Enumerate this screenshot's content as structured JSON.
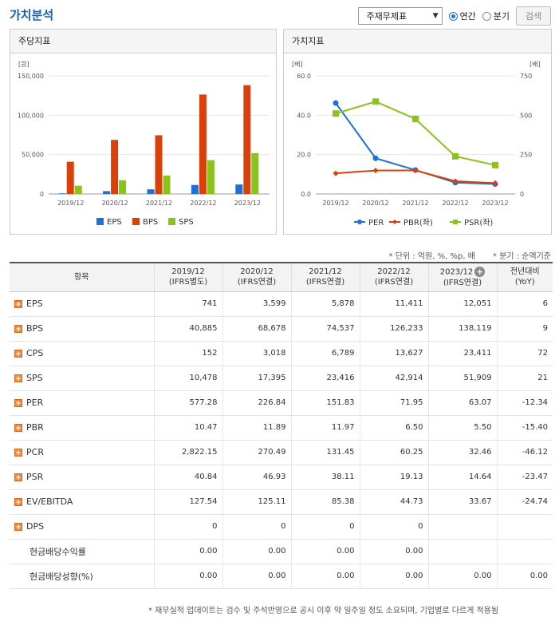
{
  "page_title": "가치분석",
  "controls": {
    "statement_select": "주재무제표",
    "radio_annual": "연간",
    "radio_quarter": "분기",
    "search_button": "검색"
  },
  "left_panel": {
    "title": "주당지표",
    "unit": "[원]",
    "yticks": [
      "150,000",
      "100,000",
      "50,000",
      "0"
    ],
    "legend": [
      "EPS",
      "BPS",
      "SPS"
    ]
  },
  "right_panel": {
    "title": "가치지표",
    "unit_left": "[배]",
    "unit_right": "[배]",
    "yticks_left": [
      "60.0",
      "40.0",
      "20.0",
      "0.0"
    ],
    "yticks_right": [
      "750",
      "500",
      "250",
      "0"
    ],
    "legend": [
      "PER",
      "PBR(좌)",
      "PSR(좌)"
    ]
  },
  "colors": {
    "eps": "#1f6fd6",
    "bps": "#d9400c",
    "sps": "#8ac31c",
    "per": "#1f6fd6",
    "pbr": "#d9400c",
    "psr": "#8ac31c"
  },
  "chart_data": [
    {
      "type": "bar",
      "categories": [
        "2019/12",
        "2020/12",
        "2021/12",
        "2022/12",
        "2023/12"
      ],
      "series": [
        {
          "name": "EPS",
          "values": [
            741,
            3599,
            5878,
            11411,
            12051
          ]
        },
        {
          "name": "BPS",
          "values": [
            40885,
            68678,
            74537,
            126233,
            138119
          ]
        },
        {
          "name": "SPS",
          "values": [
            10478,
            17395,
            23416,
            42914,
            51909
          ]
        }
      ],
      "ylim": [
        0,
        150000
      ]
    },
    {
      "type": "line",
      "categories": [
        "2019/12",
        "2020/12",
        "2021/12",
        "2022/12",
        "2023/12"
      ],
      "series": [
        {
          "name": "PER",
          "axis": "right",
          "values": [
            577.28,
            226.84,
            151.83,
            71.95,
            63.07
          ]
        },
        {
          "name": "PBR(좌)",
          "axis": "left",
          "values": [
            10.47,
            11.89,
            11.97,
            6.5,
            5.5
          ]
        },
        {
          "name": "PSR(좌)",
          "axis": "left",
          "values": [
            40.84,
            46.93,
            38.11,
            19.13,
            14.64
          ]
        }
      ],
      "ylim_left": [
        0,
        60
      ],
      "ylim_right": [
        0,
        750
      ]
    }
  ],
  "notes": {
    "unit": "* 단위 : 억원, %, %p, 배",
    "quarter": "* 분기 : 순액기준"
  },
  "table": {
    "header_item": "항목",
    "columns": [
      {
        "period": "2019/12",
        "basis": "(IFRS별도)"
      },
      {
        "period": "2020/12",
        "basis": "(IFRS연결)"
      },
      {
        "period": "2021/12",
        "basis": "(IFRS연결)"
      },
      {
        "period": "2022/12",
        "basis": "(IFRS연결)"
      },
      {
        "period": "2023/12",
        "basis": "(IFRS연결)"
      }
    ],
    "yoy_header": "전년대비",
    "yoy_sub": "(YoY)",
    "rows": [
      {
        "label": "EPS",
        "expand": true,
        "values": [
          "741",
          "3,599",
          "5,878",
          "11,411",
          "12,051"
        ],
        "yoy": "6",
        "neg": false
      },
      {
        "label": "BPS",
        "expand": true,
        "values": [
          "40,885",
          "68,678",
          "74,537",
          "126,233",
          "138,119"
        ],
        "yoy": "9",
        "neg": false
      },
      {
        "label": "CPS",
        "expand": true,
        "values": [
          "152",
          "3,018",
          "6,789",
          "13,627",
          "23,411"
        ],
        "yoy": "72",
        "neg": false
      },
      {
        "label": "SPS",
        "expand": true,
        "values": [
          "10,478",
          "17,395",
          "23,416",
          "42,914",
          "51,909"
        ],
        "yoy": "21",
        "neg": false
      },
      {
        "label": "PER",
        "expand": true,
        "values": [
          "577.28",
          "226.84",
          "151.83",
          "71.95",
          "63.07"
        ],
        "yoy": "-12.34",
        "neg": true
      },
      {
        "label": "PBR",
        "expand": true,
        "values": [
          "10.47",
          "11.89",
          "11.97",
          "6.50",
          "5.50"
        ],
        "yoy": "-15.40",
        "neg": true
      },
      {
        "label": "PCR",
        "expand": true,
        "values": [
          "2,822.15",
          "270.49",
          "131.45",
          "60.25",
          "32.46"
        ],
        "yoy": "-46.12",
        "neg": true
      },
      {
        "label": "PSR",
        "expand": true,
        "values": [
          "40.84",
          "46.93",
          "38.11",
          "19.13",
          "14.64"
        ],
        "yoy": "-23.47",
        "neg": true
      },
      {
        "label": "EV/EBITDA",
        "expand": true,
        "values": [
          "127.54",
          "125.11",
          "85.38",
          "44.73",
          "33.67"
        ],
        "yoy": "-24.74",
        "neg": true
      },
      {
        "label": "DPS",
        "expand": true,
        "values": [
          "0",
          "0",
          "0",
          "0",
          ""
        ],
        "yoy": "",
        "neg": false
      },
      {
        "label": "현금배당수익률",
        "expand": false,
        "values": [
          "0.00",
          "0.00",
          "0.00",
          "0.00",
          ""
        ],
        "yoy": "",
        "neg": false
      },
      {
        "label": "현금배당성향(%)",
        "expand": false,
        "values": [
          "0.00",
          "0.00",
          "0.00",
          "0.00",
          "0.00"
        ],
        "yoy": "0.00",
        "neg": false
      }
    ]
  },
  "footnote": "* 재무실적 업데이트는 검수 및 주석반영으로 공시 이후 약 일주일 정도 소요되며, 기업별로 다르게 적용됨"
}
